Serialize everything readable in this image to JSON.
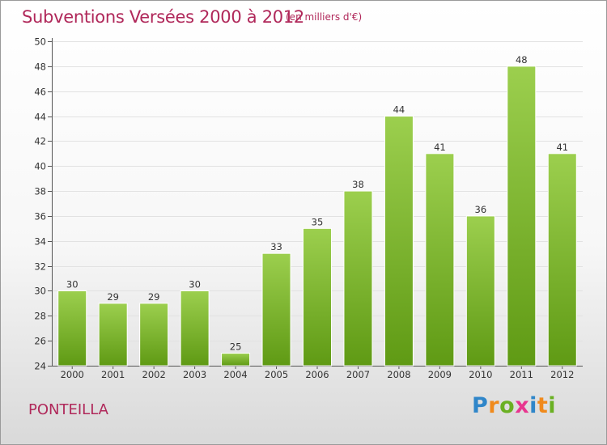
{
  "title": "Subventions Versées 2000 à 2012",
  "subtitle": "(en milliers d'€)",
  "commune": "PONTEILLA",
  "logo": {
    "letters": [
      "P",
      "r",
      "o",
      "x",
      "i",
      "t",
      "i"
    ],
    "colors": [
      "#2f86c9",
      "#f08a1c",
      "#6ab023",
      "#e8368f",
      "#2f86c9",
      "#f08a1c",
      "#6ab023"
    ]
  },
  "colors": {
    "bar_top": "#9ccf4e",
    "bar_bottom": "#5f9a14",
    "accent": "#b0285a"
  },
  "chart_data": {
    "type": "bar",
    "categories": [
      "2000",
      "2001",
      "2002",
      "2003",
      "2004",
      "2005",
      "2006",
      "2007",
      "2008",
      "2009",
      "2010",
      "2011",
      "2012"
    ],
    "values": [
      30,
      29,
      29,
      30,
      25,
      33,
      35,
      38,
      44,
      41,
      36,
      48,
      41
    ],
    "ylim": [
      24,
      50
    ],
    "yticks": [
      24,
      26,
      28,
      30,
      32,
      34,
      36,
      38,
      40,
      42,
      44,
      46,
      48,
      50
    ],
    "grid": true
  }
}
